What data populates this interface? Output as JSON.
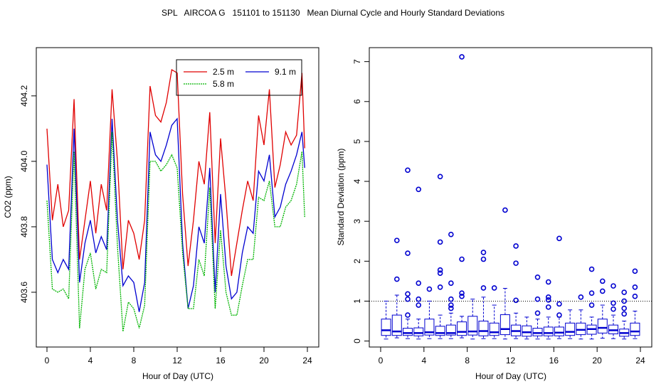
{
  "title": "SPL   AIRCOA G   151101 to 151130   Mean Diurnal Cycle and Hourly Standard Deviations",
  "colors": {
    "s25": "#e00000",
    "s58": "#00b400",
    "s91": "#0000d0",
    "box": "#0000d0"
  },
  "chart_data": [
    {
      "type": "line",
      "xlabel": "Hour of Day (UTC)",
      "ylabel": "CO2 (ppm)",
      "xlim": [
        0,
        24
      ],
      "ylim": [
        403.45,
        404.33
      ],
      "xticks": [
        0,
        4,
        8,
        12,
        16,
        20,
        24
      ],
      "yticks": [
        403.6,
        403.8,
        404.0,
        404.2
      ],
      "ytick_labels": [
        "403.6",
        "403.8",
        "404.0",
        "404.2"
      ],
      "legend": {
        "position": "top-right",
        "entries": [
          "2.5 m",
          "9.1 m",
          "5.8 m"
        ]
      },
      "series": [
        {
          "name": "2.5 m",
          "color_key": "s25",
          "x": [
            0,
            0.5,
            1,
            1.5,
            2,
            2.5,
            3,
            3.5,
            4,
            4.5,
            5,
            5.5,
            6,
            6.5,
            7,
            7.5,
            8,
            8.5,
            9,
            9.5,
            10,
            10.5,
            11,
            11.5,
            12,
            12.5,
            13,
            13.5,
            14,
            14.5,
            15,
            15.5,
            16,
            16.5,
            17,
            17.5,
            18,
            18.5,
            19,
            19.5,
            20,
            20.5,
            21,
            21.5,
            22,
            22.5,
            23,
            23.5,
            23.75
          ],
          "values": [
            404.1,
            403.82,
            403.93,
            403.8,
            403.85,
            404.19,
            403.7,
            403.82,
            403.94,
            403.78,
            403.93,
            403.85,
            404.22,
            404.0,
            403.67,
            403.82,
            403.78,
            403.7,
            403.82,
            404.23,
            404.14,
            404.12,
            404.18,
            404.28,
            404.27,
            403.9,
            403.68,
            403.82,
            404.0,
            403.93,
            404.15,
            403.75,
            404.07,
            403.88,
            403.65,
            403.75,
            403.85,
            403.94,
            403.88,
            404.14,
            404.05,
            404.22,
            403.92,
            403.99,
            404.09,
            404.05,
            404.08,
            404.27,
            404.04
          ]
        },
        {
          "name": "9.1 m",
          "color_key": "s91",
          "x": [
            0,
            0.5,
            1,
            1.5,
            2,
            2.5,
            3,
            3.5,
            4,
            4.5,
            5,
            5.5,
            6,
            6.5,
            7,
            7.5,
            8,
            8.5,
            9,
            9.5,
            10,
            10.5,
            11,
            11.5,
            12,
            12.5,
            13,
            13.5,
            14,
            14.5,
            15,
            15.5,
            16,
            16.5,
            17,
            17.5,
            18,
            18.5,
            19,
            19.5,
            20,
            20.5,
            21,
            21.5,
            22,
            22.5,
            23,
            23.5,
            23.75
          ],
          "values": [
            403.99,
            403.7,
            403.66,
            403.7,
            403.67,
            404.1,
            403.63,
            403.75,
            403.82,
            403.72,
            403.77,
            403.73,
            404.13,
            403.82,
            403.62,
            403.65,
            403.63,
            403.54,
            403.63,
            404.09,
            404.02,
            404.0,
            404.05,
            404.11,
            404.13,
            403.75,
            403.55,
            403.62,
            403.8,
            403.75,
            403.98,
            403.6,
            403.9,
            403.68,
            403.58,
            403.6,
            403.72,
            403.8,
            403.78,
            403.97,
            403.94,
            404.02,
            403.83,
            403.86,
            403.93,
            403.97,
            404.02,
            404.09,
            403.98
          ]
        },
        {
          "name": "5.8 m",
          "color_key": "s58",
          "x": [
            0,
            0.5,
            1,
            1.5,
            2,
            2.5,
            3,
            3.5,
            4,
            4.5,
            5,
            5.5,
            6,
            6.5,
            7,
            7.5,
            8,
            8.5,
            9,
            9.5,
            10,
            10.5,
            11,
            11.5,
            12,
            12.5,
            13,
            13.5,
            14,
            14.5,
            15,
            15.5,
            16,
            16.5,
            17,
            17.5,
            18,
            18.5,
            19,
            19.5,
            20,
            20.5,
            21,
            21.5,
            22,
            22.5,
            23,
            23.5,
            23.75
          ],
          "values": [
            403.88,
            403.61,
            403.6,
            403.61,
            403.58,
            404.03,
            403.49,
            403.67,
            403.72,
            403.61,
            403.67,
            403.66,
            404.09,
            403.74,
            403.48,
            403.57,
            403.55,
            403.49,
            403.56,
            404.0,
            404.0,
            403.97,
            403.99,
            404.02,
            403.98,
            403.72,
            403.55,
            403.55,
            403.7,
            403.65,
            403.92,
            403.55,
            403.79,
            403.6,
            403.53,
            403.53,
            403.62,
            403.7,
            403.7,
            403.89,
            403.88,
            403.94,
            403.8,
            403.8,
            403.86,
            403.88,
            403.93,
            404.03,
            403.83
          ]
        }
      ]
    },
    {
      "type": "box",
      "xlabel": "Hour of Day (UTC)",
      "ylabel": "Standard Deviation (ppm)",
      "xlim": [
        -1.05,
        25.05
      ],
      "ylim": [
        -0.15,
        7.35
      ],
      "xticks": [
        0,
        4,
        8,
        12,
        16,
        20,
        24
      ],
      "yticks": [
        0,
        1,
        2,
        3,
        4,
        5,
        6,
        7
      ],
      "reference_line": 1,
      "boxes": [
        {
          "x": 0.5,
          "lw": 0.05,
          "q1": 0.14,
          "med": 0.27,
          "q3": 0.55,
          "uw": 1.0,
          "out": []
        },
        {
          "x": 1.5,
          "lw": 0.08,
          "q1": 0.14,
          "med": 0.24,
          "q3": 0.65,
          "uw": 1.15,
          "out": [
            1.55,
            2.52
          ]
        },
        {
          "x": 2.5,
          "lw": 0.06,
          "q1": 0.14,
          "med": 0.2,
          "q3": 0.32,
          "uw": 0.55,
          "out": [
            0.65,
            1.05,
            1.18,
            2.2,
            4.28
          ]
        },
        {
          "x": 3.5,
          "lw": 0.05,
          "q1": 0.13,
          "med": 0.2,
          "q3": 0.33,
          "uw": 0.55,
          "out": [
            0.9,
            1.05,
            1.45,
            3.8
          ]
        },
        {
          "x": 4.5,
          "lw": 0.06,
          "q1": 0.15,
          "med": 0.22,
          "q3": 0.55,
          "uw": 1.0,
          "out": [
            1.3
          ]
        },
        {
          "x": 5.5,
          "lw": 0.06,
          "q1": 0.14,
          "med": 0.2,
          "q3": 0.37,
          "uw": 0.65,
          "out": [
            1.35,
            1.7,
            1.78,
            2.48,
            4.12
          ]
        },
        {
          "x": 6.5,
          "lw": 0.06,
          "q1": 0.15,
          "med": 0.2,
          "q3": 0.4,
          "uw": 0.7,
          "out": [
            0.82,
            0.9,
            1.05,
            1.45,
            2.67
          ]
        },
        {
          "x": 7.5,
          "lw": 0.08,
          "q1": 0.14,
          "med": 0.23,
          "q3": 0.48,
          "uw": 0.62,
          "out": [
            1.12,
            1.2,
            2.05,
            7.12
          ]
        },
        {
          "x": 8.5,
          "lw": 0.05,
          "q1": 0.15,
          "med": 0.24,
          "q3": 0.62,
          "uw": 1.05,
          "out": []
        },
        {
          "x": 9.5,
          "lw": 0.06,
          "q1": 0.13,
          "med": 0.25,
          "q3": 0.5,
          "uw": 1.1,
          "out": [
            1.33,
            2.05,
            2.22
          ]
        },
        {
          "x": 10.5,
          "lw": 0.06,
          "q1": 0.14,
          "med": 0.22,
          "q3": 0.45,
          "uw": 0.9,
          "out": [
            1.33
          ]
        },
        {
          "x": 11.5,
          "lw": 0.05,
          "q1": 0.16,
          "med": 0.3,
          "q3": 0.66,
          "uw": 1.32,
          "out": [
            3.28
          ]
        },
        {
          "x": 12.5,
          "lw": 0.06,
          "q1": 0.13,
          "med": 0.25,
          "q3": 0.4,
          "uw": 0.7,
          "out": [
            1.02,
            1.95,
            2.38
          ]
        },
        {
          "x": 13.5,
          "lw": 0.05,
          "q1": 0.12,
          "med": 0.22,
          "q3": 0.38,
          "uw": 0.6,
          "out": []
        },
        {
          "x": 14.5,
          "lw": 0.05,
          "q1": 0.13,
          "med": 0.2,
          "q3": 0.32,
          "uw": 0.55,
          "out": [
            0.7,
            1.05,
            1.6
          ]
        },
        {
          "x": 15.5,
          "lw": 0.05,
          "q1": 0.13,
          "med": 0.2,
          "q3": 0.35,
          "uw": 0.6,
          "out": [
            0.85,
            1.03,
            1.1,
            1.48
          ]
        },
        {
          "x": 16.5,
          "lw": 0.06,
          "q1": 0.13,
          "med": 0.21,
          "q3": 0.35,
          "uw": 0.6,
          "out": [
            0.65,
            0.93,
            2.57
          ]
        },
        {
          "x": 17.5,
          "lw": 0.06,
          "q1": 0.14,
          "med": 0.23,
          "q3": 0.45,
          "uw": 0.78,
          "out": []
        },
        {
          "x": 18.5,
          "lw": 0.05,
          "q1": 0.16,
          "med": 0.28,
          "q3": 0.45,
          "uw": 0.78,
          "out": [
            1.1
          ]
        },
        {
          "x": 19.5,
          "lw": 0.05,
          "q1": 0.17,
          "med": 0.3,
          "q3": 0.4,
          "uw": 0.6,
          "out": [
            0.9,
            1.2,
            1.8
          ]
        },
        {
          "x": 20.5,
          "lw": 0.07,
          "q1": 0.2,
          "med": 0.33,
          "q3": 0.55,
          "uw": 0.9,
          "out": [
            1.25,
            1.5
          ]
        },
        {
          "x": 21.5,
          "lw": 0.06,
          "q1": 0.18,
          "med": 0.27,
          "q3": 0.4,
          "uw": 0.65,
          "out": [
            0.8,
            0.95,
            1.38
          ]
        },
        {
          "x": 22.5,
          "lw": 0.05,
          "q1": 0.12,
          "med": 0.2,
          "q3": 0.3,
          "uw": 0.5,
          "out": [
            0.68,
            0.82,
            1.0,
            1.22
          ]
        },
        {
          "x": 23.5,
          "lw": 0.06,
          "q1": 0.14,
          "med": 0.24,
          "q3": 0.45,
          "uw": 0.75,
          "out": [
            1.12,
            1.35,
            1.75
          ]
        }
      ]
    }
  ]
}
